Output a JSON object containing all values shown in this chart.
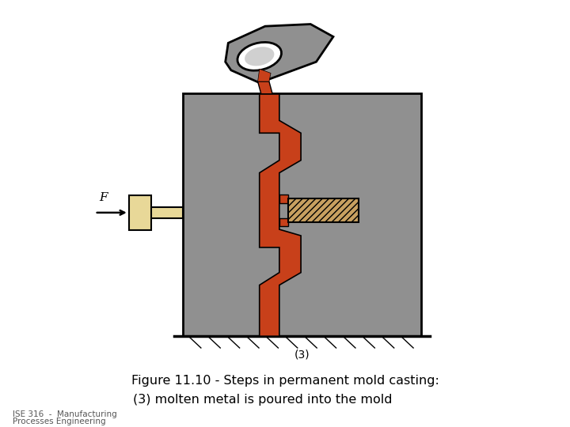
{
  "title_line1": "Figure 11.10 ‐ Steps in permanent mold casting:",
  "title_line2": "(3) molten metal is poured into the mold",
  "label3": "(3)",
  "footer_line1": "ISE 316  -  Manufacturing",
  "footer_line2": "Processes Engineering",
  "bg_color": "#ffffff",
  "mold_color": "#909090",
  "metal_color": "#c8401a",
  "core_color": "#c8a060",
  "ejector_color": "#e8d898",
  "cup_color": "#909090",
  "title_fontsize": 11.5,
  "subtitle_fontsize": 11.5,
  "footer_fontsize": 7.5,
  "label_fontsize": 10
}
